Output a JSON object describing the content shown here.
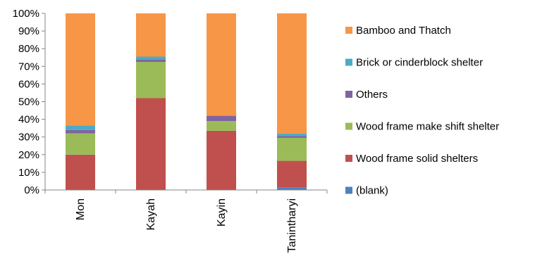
{
  "chart_data": {
    "type": "bar",
    "stacked": true,
    "percent": true,
    "categories": [
      "Mon",
      "Kayah",
      "Kayin",
      "Tanintharyi"
    ],
    "ylim": [
      0,
      100
    ],
    "yticks": [
      0,
      10,
      20,
      30,
      40,
      50,
      60,
      70,
      80,
      90,
      100
    ],
    "ytick_labels": [
      "0%",
      "10%",
      "20%",
      "30%",
      "40%",
      "50%",
      "60%",
      "70%",
      "80%",
      "90%",
      "100%"
    ],
    "title": "",
    "xlabel": "",
    "ylabel": "",
    "grid": false,
    "legend_position": "right",
    "series": [
      {
        "name": "(blank)",
        "color": "#4f81bd",
        "values": [
          0,
          0,
          0,
          1.5
        ]
      },
      {
        "name": "Wood frame solid shelters",
        "color": "#c0504d",
        "values": [
          20,
          52,
          33.5,
          15
        ]
      },
      {
        "name": "Wood frame make shift shelter",
        "color": "#9bbb59",
        "values": [
          12,
          20.5,
          5.5,
          13
        ]
      },
      {
        "name": "Others",
        "color": "#8064a2",
        "values": [
          2,
          1.5,
          3,
          1
        ]
      },
      {
        "name": "Brick or cinderblock shelter",
        "color": "#4bacc6",
        "values": [
          2.5,
          1.5,
          0,
          1.5
        ]
      },
      {
        "name": "Bamboo and Thatch",
        "color": "#f79646",
        "values": [
          63.5,
          24.5,
          58,
          68
        ]
      }
    ]
  }
}
